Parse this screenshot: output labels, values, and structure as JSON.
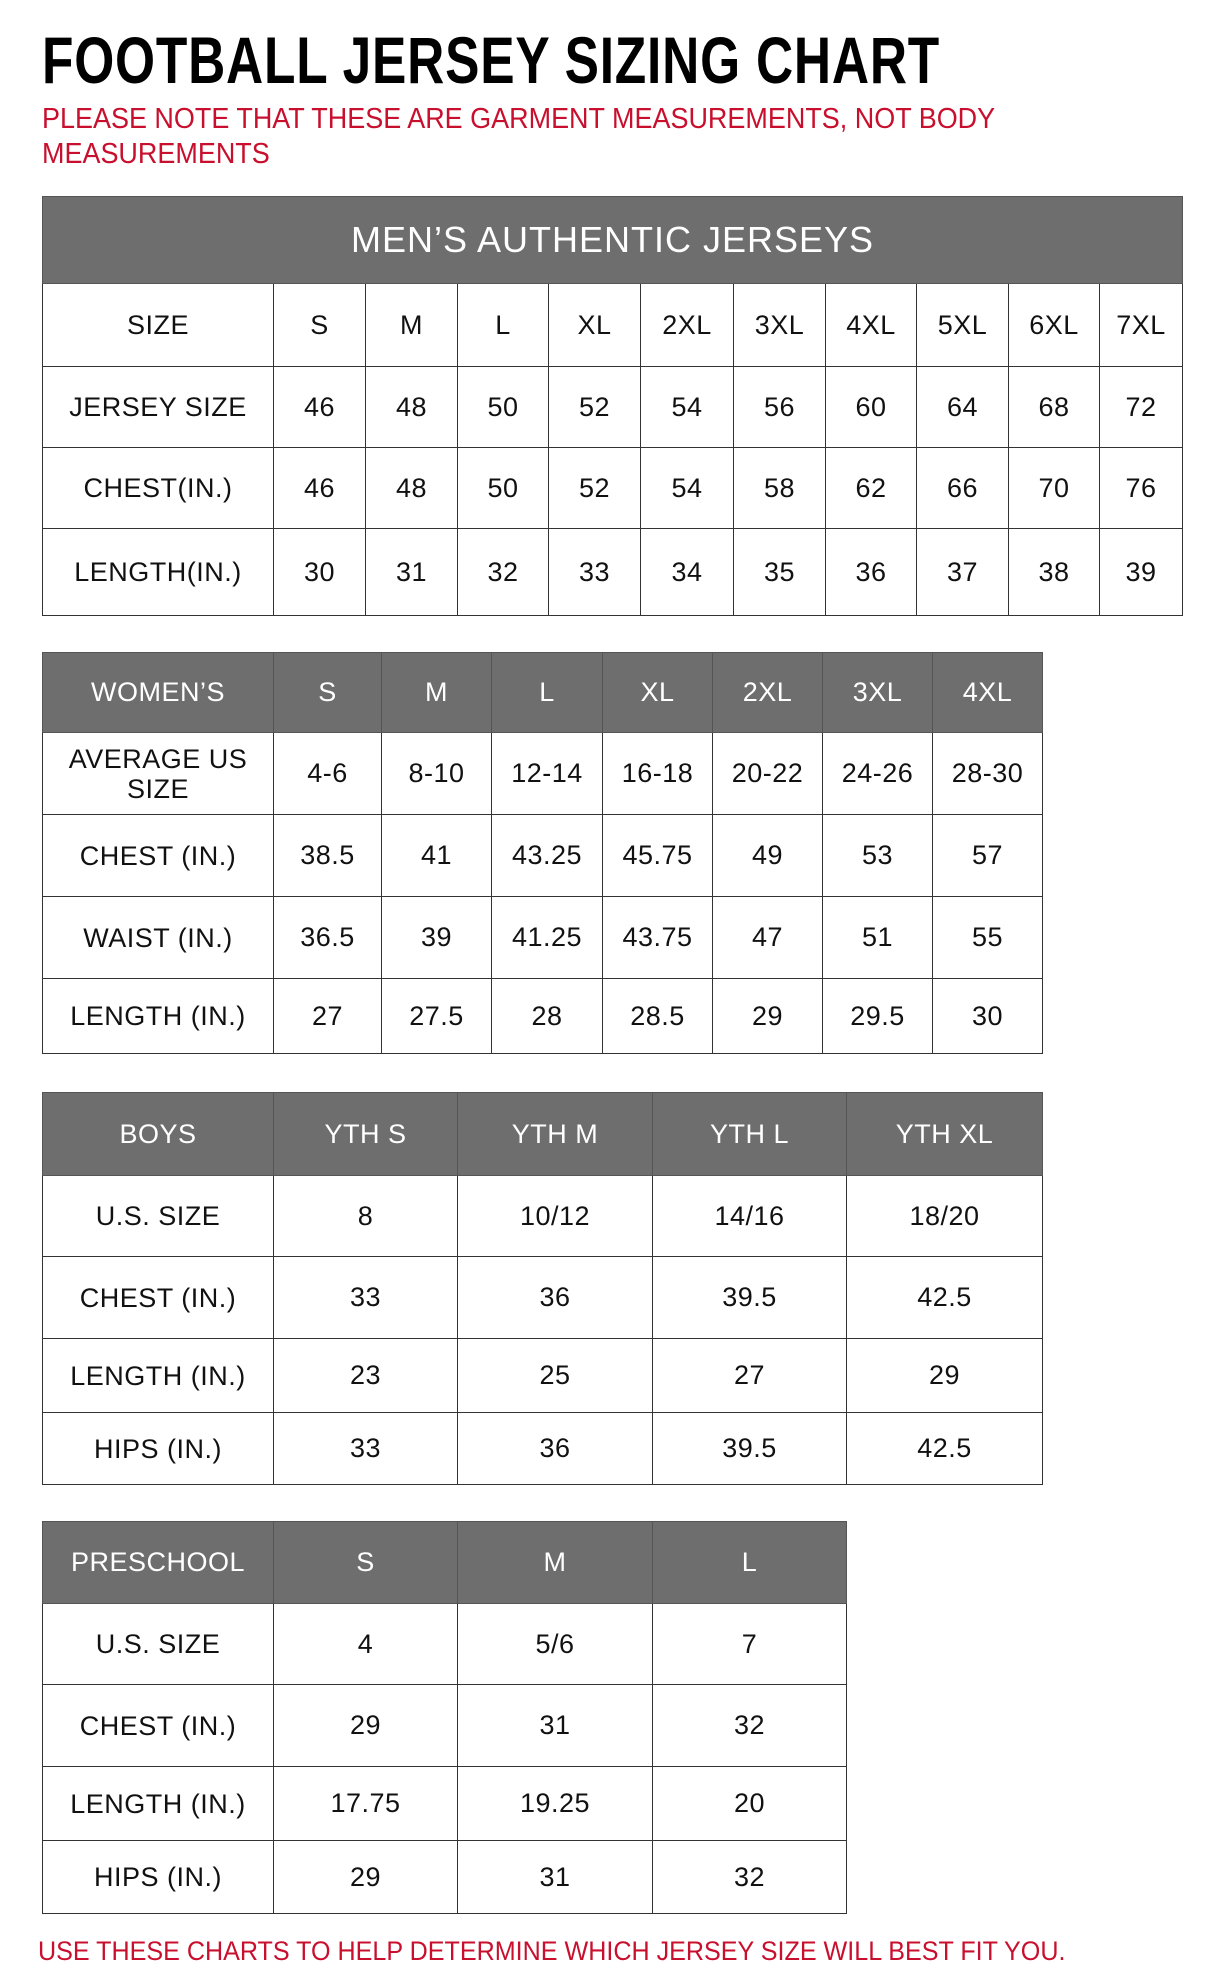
{
  "title": "FOOTBALL JERSEY SIZING CHART",
  "note": "PLEASE NOTE THAT THESE ARE GARMENT MEASUREMENTS, NOT BODY MEASUREMENTS",
  "footer": "USE THESE CHARTS TO HELP DETERMINE WHICH JERSEY SIZE WILL BEST FIT YOU.",
  "colors": {
    "header_bg": "#6e6e6e",
    "note_red": "#c8102e"
  },
  "men": {
    "title": "MEN’S AUTHENTIC JERSEYS",
    "rows": [
      {
        "label": "SIZE",
        "values": [
          "S",
          "M",
          "L",
          "XL",
          "2XL",
          "3XL",
          "4XL",
          "5XL",
          "6XL",
          "7XL"
        ]
      },
      {
        "label": "JERSEY SIZE",
        "values": [
          "46",
          "48",
          "50",
          "52",
          "54",
          "56",
          "60",
          "64",
          "68",
          "72"
        ]
      },
      {
        "label": "CHEST(IN.)",
        "values": [
          "46",
          "48",
          "50",
          "52",
          "54",
          "58",
          "62",
          "66",
          "70",
          "76"
        ]
      },
      {
        "label": "LENGTH(IN.)",
        "values": [
          "30",
          "31",
          "32",
          "33",
          "34",
          "35",
          "36",
          "37",
          "38",
          "39"
        ]
      }
    ]
  },
  "women": {
    "header": {
      "label": "WOMEN’S",
      "values": [
        "S",
        "M",
        "L",
        "XL",
        "2XL",
        "3XL",
        "4XL"
      ]
    },
    "rows": [
      {
        "label": "AVERAGE US SIZE",
        "values": [
          "4-6",
          "8-10",
          "12-14",
          "16-18",
          "20-22",
          "24-26",
          "28-30"
        ]
      },
      {
        "label": "CHEST (IN.)",
        "values": [
          "38.5",
          "41",
          "43.25",
          "45.75",
          "49",
          "53",
          "57"
        ]
      },
      {
        "label": "WAIST (IN.)",
        "values": [
          "36.5",
          "39",
          "41.25",
          "43.75",
          "47",
          "51",
          "55"
        ]
      },
      {
        "label": "LENGTH (IN.)",
        "values": [
          "27",
          "27.5",
          "28",
          "28.5",
          "29",
          "29.5",
          "30"
        ]
      }
    ]
  },
  "boys": {
    "header": {
      "label": "BOYS",
      "values": [
        "YTH S",
        "YTH M",
        "YTH L",
        "YTH XL"
      ]
    },
    "rows": [
      {
        "label": "U.S. SIZE",
        "values": [
          "8",
          "10/12",
          "14/16",
          "18/20"
        ]
      },
      {
        "label": "CHEST (IN.)",
        "values": [
          "33",
          "36",
          "39.5",
          "42.5"
        ]
      },
      {
        "label": "LENGTH (IN.)",
        "values": [
          "23",
          "25",
          "27",
          "29"
        ]
      },
      {
        "label": "HIPS (IN.)",
        "values": [
          "33",
          "36",
          "39.5",
          "42.5"
        ]
      }
    ]
  },
  "preschool": {
    "header": {
      "label": "PRESCHOOL",
      "values": [
        "S",
        "M",
        "L"
      ]
    },
    "rows": [
      {
        "label": "U.S. SIZE",
        "values": [
          "4",
          "5/6",
          "7"
        ]
      },
      {
        "label": "CHEST (IN.)",
        "values": [
          "29",
          "31",
          "32"
        ]
      },
      {
        "label": "LENGTH (IN.)",
        "values": [
          "17.75",
          "19.25",
          "20"
        ]
      },
      {
        "label": "HIPS (IN.)",
        "values": [
          "29",
          "31",
          "32"
        ]
      }
    ]
  }
}
